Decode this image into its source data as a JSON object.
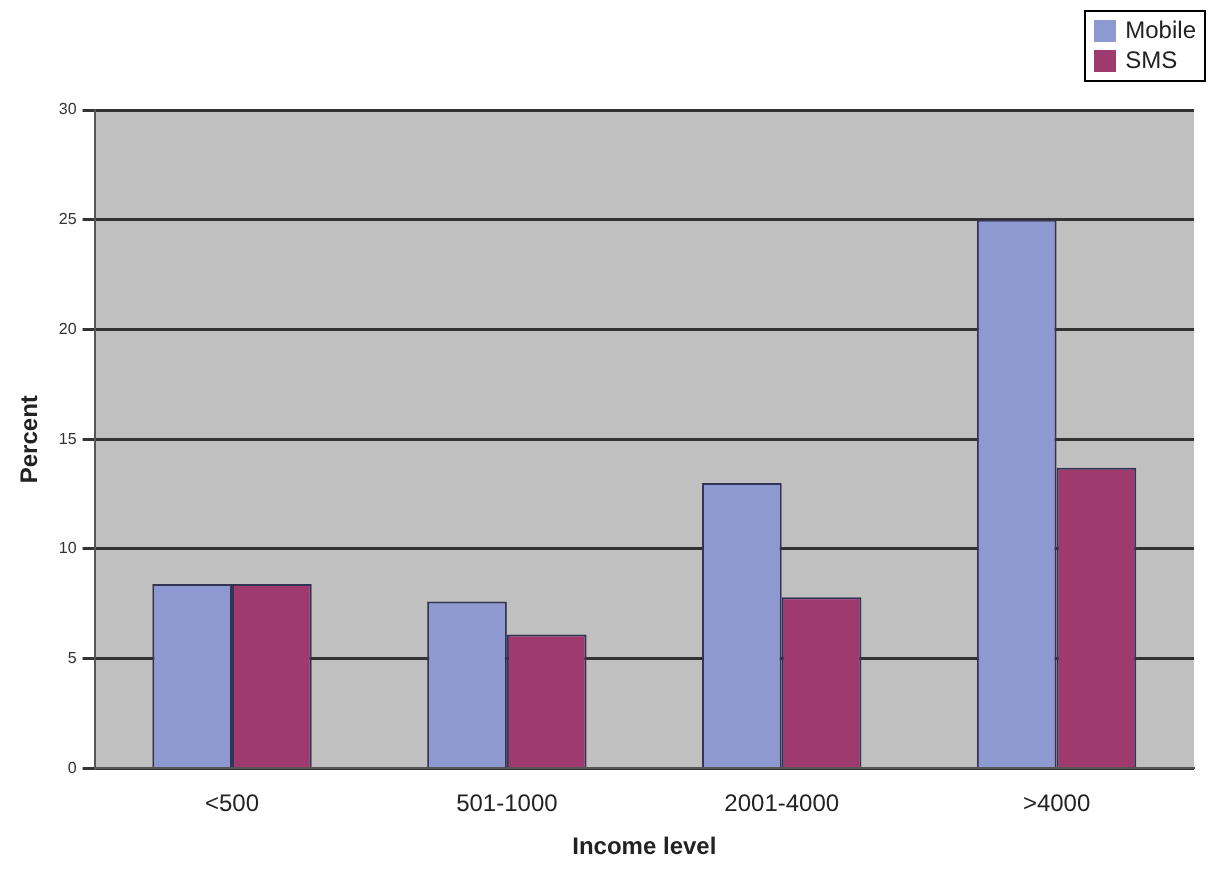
{
  "chart_data": {
    "type": "bar",
    "xlabel": "Income level",
    "ylabel": "Percent",
    "categories": [
      "<500",
      "501-1000",
      "2001-4000",
      ">4000"
    ],
    "series": [
      {
        "name": "Mobile",
        "color": "#8d99d0",
        "values": [
          8.4,
          7.6,
          13,
          25
        ]
      },
      {
        "name": "SMS",
        "color": "#9e3a6e",
        "values": [
          8.4,
          6.1,
          7.8,
          13.7
        ]
      }
    ],
    "ylim": [
      0,
      30
    ],
    "yticks": [
      0,
      5,
      10,
      15,
      20,
      25,
      30
    ],
    "grid": "y",
    "legend": "top right"
  }
}
